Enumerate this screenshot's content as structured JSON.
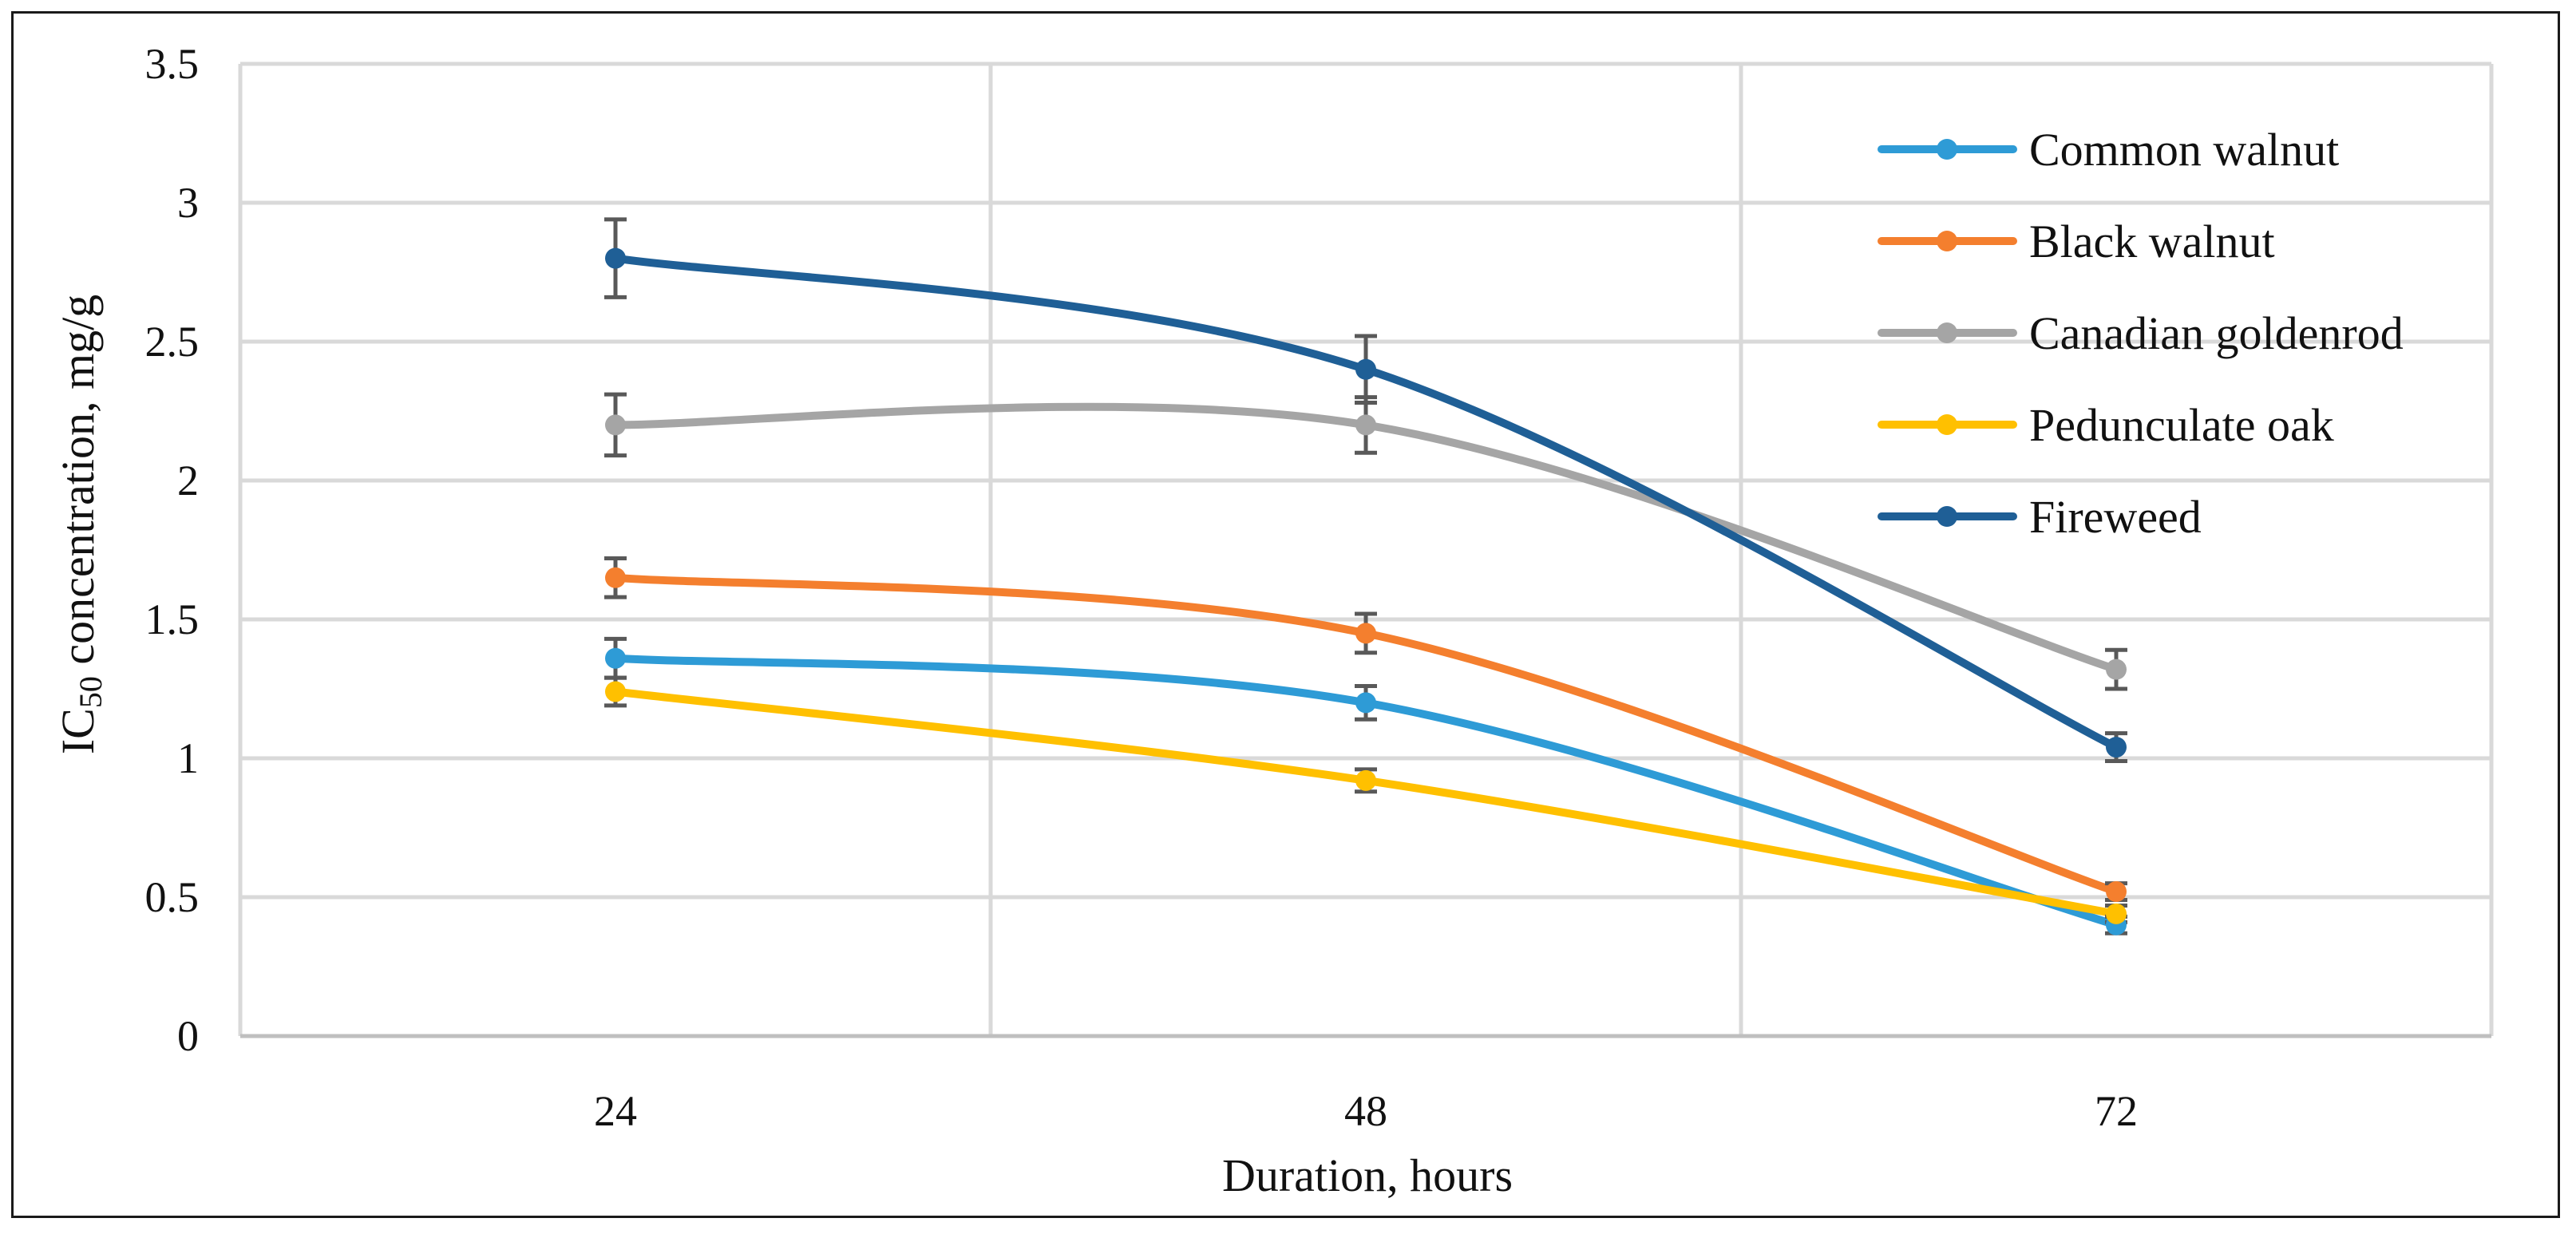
{
  "chart_data": {
    "type": "line",
    "title": "",
    "xlabel": "Duration, hours",
    "ylabel": {
      "prefix": "IC",
      "subscript": "50",
      "suffix": " concentration, mg/g"
    },
    "x": [
      24,
      48,
      72
    ],
    "x_tick_labels": [
      "24",
      "48",
      "72"
    ],
    "y_tick_labels": [
      "0",
      "0.5",
      "1",
      "1.5",
      "2",
      "2.5",
      "3",
      "3.5"
    ],
    "ylim": [
      0,
      3.5
    ],
    "grid": true,
    "smooth": true,
    "legend_position": "top-right",
    "error_bar_color": "#595959",
    "series": [
      {
        "name": "Common walnut",
        "color": "#2E9BD6",
        "values": [
          1.36,
          1.2,
          0.4
        ],
        "errors": [
          0.07,
          0.06,
          0.03
        ]
      },
      {
        "name": "Black walnut",
        "color": "#F47F2E",
        "values": [
          1.65,
          1.45,
          0.52
        ],
        "errors": [
          0.07,
          0.07,
          0.03
        ]
      },
      {
        "name": "Canadian goldenrod",
        "color": "#A5A5A5",
        "values": [
          2.2,
          2.2,
          1.32
        ],
        "errors": [
          0.11,
          0.1,
          0.07
        ]
      },
      {
        "name": "Pedunculate oak",
        "color": "#FFC000",
        "values": [
          1.24,
          0.92,
          0.44
        ],
        "errors": [
          0.05,
          0.04,
          0.03
        ]
      },
      {
        "name": "Fireweed",
        "color": "#1F5F96",
        "values": [
          2.8,
          2.4,
          1.04
        ],
        "errors": [
          0.14,
          0.12,
          0.05
        ]
      }
    ]
  }
}
